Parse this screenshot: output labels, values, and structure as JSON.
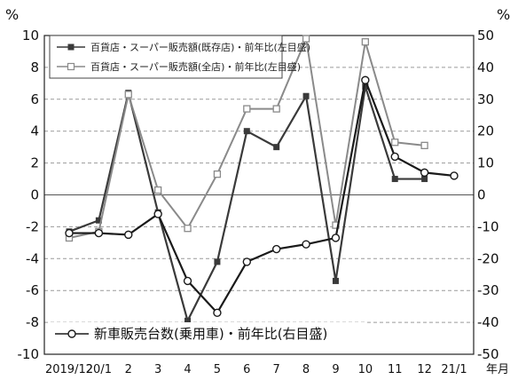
{
  "chart_data": {
    "type": "line",
    "left_unit": "%",
    "right_unit": "%",
    "x_unit": "年月",
    "x_labels": [
      "2019/12",
      "20/1",
      "2",
      "3",
      "4",
      "5",
      "6",
      "7",
      "8",
      "9",
      "10",
      "11",
      "12",
      "21/1"
    ],
    "left_axis": {
      "ylim": [
        -10,
        10
      ],
      "ticks": [
        10,
        8,
        6,
        4,
        2,
        0,
        -2,
        -4,
        -6,
        -8,
        -10
      ]
    },
    "right_axis": {
      "ylim": [
        -50,
        50
      ],
      "ticks": [
        50,
        40,
        30,
        20,
        10,
        0,
        -10,
        -20,
        -30,
        -40,
        -50
      ]
    },
    "grid": true,
    "legend_top": "top-left",
    "legend_bottom": "bottom-left",
    "series": [
      {
        "name": "百貨店・スーパー販売額(既存店)・前年比(左目盛)",
        "axis": "left",
        "marker": "filled-square",
        "color": "#3a3a3a",
        "values": [
          -2.3,
          -1.6,
          6.4,
          -1.1,
          -7.9,
          -4.2,
          4.0,
          3.0,
          6.2,
          -5.4,
          6.8,
          1.0,
          1.0,
          null
        ]
      },
      {
        "name": "百貨店・スーパー販売額(全店)・前年比(左目盛)",
        "axis": "left",
        "marker": "open-square",
        "color": "#8a8a8a",
        "values": [
          -2.7,
          -2.3,
          6.3,
          0.3,
          -2.1,
          1.3,
          5.4,
          5.4,
          9.8,
          -1.9,
          9.6,
          3.3,
          3.1,
          null
        ]
      },
      {
        "name": "新車販売台数(乗用車)・前年比(右目盛)",
        "axis": "right",
        "marker": "open-circle",
        "color": "#1a1a1a",
        "values": [
          -12,
          -12,
          -12.5,
          -6,
          -27,
          -37,
          -21,
          -17,
          -15.5,
          -13.5,
          36,
          12,
          7,
          6
        ]
      }
    ]
  }
}
